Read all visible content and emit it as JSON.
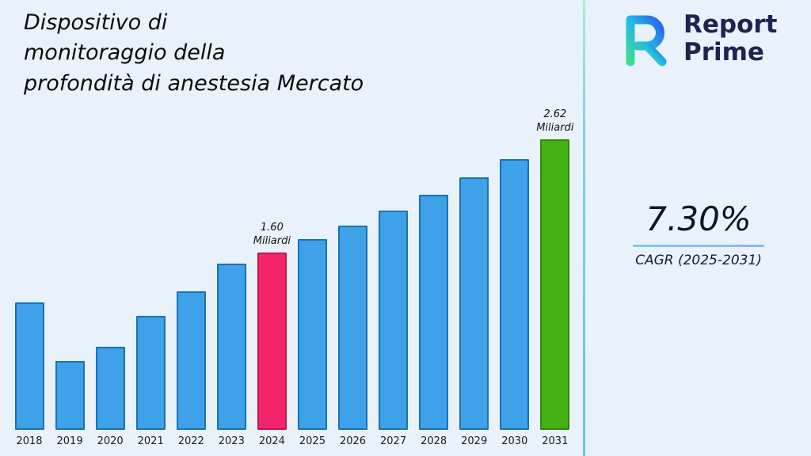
{
  "title": {
    "lines": [
      "Dispositivo di",
      "monitoraggio della",
      "profondità di anestesia Mercato"
    ]
  },
  "brand": {
    "line1": "Report",
    "line2": "Prime",
    "logo": "reportprime-logo",
    "logo_colors": {
      "start": "#3ddc97",
      "mid": "#22b8e6",
      "end": "#2563eb"
    },
    "text_color": "#1c2550"
  },
  "stats": {
    "cagr_value": "7.30%",
    "cagr_label": "CAGR (2025-2031)"
  },
  "chart_data": {
    "type": "bar",
    "title": "Dispositivo di monitoraggio della profondità di anestesia Mercato",
    "xlabel": "",
    "ylabel": "",
    "unit": "Miliardi",
    "ylim": [
      0,
      2.8
    ],
    "grid": false,
    "legend": false,
    "categories": [
      "2018",
      "2019",
      "2020",
      "2021",
      "2022",
      "2023",
      "2024",
      "2025",
      "2026",
      "2027",
      "2028",
      "2029",
      "2030",
      "2031"
    ],
    "values": [
      1.15,
      0.62,
      0.75,
      1.03,
      1.25,
      1.5,
      1.6,
      1.72,
      1.84,
      1.98,
      2.12,
      2.28,
      2.44,
      2.62
    ],
    "annotations": [
      {
        "category": "2024",
        "text_lines": [
          "1.60",
          "Miliardi"
        ]
      },
      {
        "category": "2031",
        "text_lines": [
          "2.62",
          "Miliardi"
        ]
      }
    ],
    "bar_colors": {
      "default": {
        "fill": "#3FA2E9",
        "border": "#1673B9"
      },
      "2024": {
        "fill": "#F4246B",
        "border": "#C21653"
      },
      "2031": {
        "fill": "#46B115",
        "border": "#2F8A0B"
      }
    }
  }
}
